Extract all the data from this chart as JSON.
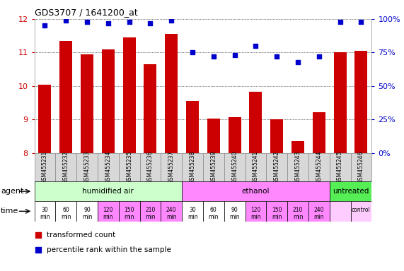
{
  "title": "GDS3707 / 1641200_at",
  "samples": [
    "GSM455231",
    "GSM455232",
    "GSM455233",
    "GSM455234",
    "GSM455235",
    "GSM455236",
    "GSM455237",
    "GSM455238",
    "GSM455239",
    "GSM455240",
    "GSM455241",
    "GSM455242",
    "GSM455243",
    "GSM455244",
    "GSM455245",
    "GSM455246"
  ],
  "bar_values": [
    10.05,
    11.35,
    10.95,
    11.1,
    11.45,
    10.65,
    11.55,
    9.55,
    9.02,
    9.08,
    9.82,
    9.0,
    8.35,
    9.22,
    11.0,
    11.05
  ],
  "dot_values": [
    95,
    99,
    98,
    97,
    98,
    97,
    99,
    75,
    72,
    73,
    80,
    72,
    68,
    72,
    98,
    98
  ],
  "bar_color": "#cc0000",
  "dot_color": "#0000cc",
  "ylim_left": [
    8,
    12
  ],
  "ylim_right": [
    0,
    100
  ],
  "yticks_left": [
    8,
    9,
    10,
    11,
    12
  ],
  "yticks_right": [
    0,
    25,
    50,
    75,
    100
  ],
  "agent_groups": [
    {
      "label": "humidified air",
      "start": 0,
      "end": 7,
      "color": "#ccffcc"
    },
    {
      "label": "ethanol",
      "start": 7,
      "end": 14,
      "color": "#ff88ff"
    },
    {
      "label": "untreated",
      "start": 14,
      "end": 16,
      "color": "#55ee55"
    }
  ],
  "time_cell_colors": [
    "#ffffff",
    "#ffffff",
    "#ffffff",
    "#ff88ff",
    "#ff88ff",
    "#ff88ff",
    "#ff88ff",
    "#ffffff",
    "#ffffff",
    "#ffffff",
    "#ff88ff",
    "#ff88ff",
    "#ff88ff",
    "#ff88ff",
    "#ffccff",
    "#ffccff"
  ],
  "time_labels_top": [
    "30",
    "60",
    "90",
    "120",
    "150",
    "210",
    "240",
    "30",
    "60",
    "90",
    "120",
    "150",
    "210",
    "240",
    "",
    "control"
  ],
  "time_labels_bot": [
    "min",
    "min",
    "min",
    "min",
    "min",
    "min",
    "min",
    "min",
    "min",
    "min",
    "min",
    "min",
    "min",
    "min",
    "",
    ""
  ],
  "label_agent": "agent",
  "label_time": "time",
  "legend_bar": "transformed count",
  "legend_dot": "percentile rank within the sample",
  "bar_width": 0.6,
  "tick_color_left": "#cc0000",
  "tick_color_right": "#0000cc",
  "sample_bg": "#d8d8d8",
  "sample_border": "#888888"
}
